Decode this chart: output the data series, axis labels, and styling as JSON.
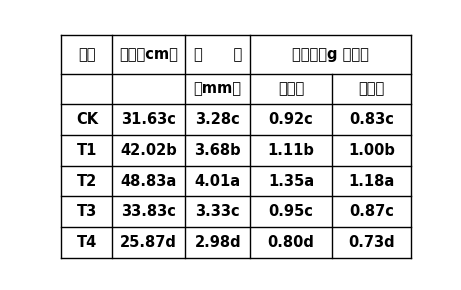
{
  "col_headers_row1": [
    "处理",
    "株高（cm）",
    "茎　　粗",
    "生物量（g 干重）"
  ],
  "col_headers_row2": [
    "",
    "",
    "（mm）",
    "地上部",
    "地下部"
  ],
  "rows": [
    [
      "CK",
      "31.63c",
      "3.28c",
      "0.92c",
      "0.83c"
    ],
    [
      "T1",
      "42.02b",
      "3.68b",
      "1.11b",
      "1.00b"
    ],
    [
      "T2",
      "48.83a",
      "4.01a",
      "1.35a",
      "1.18a"
    ],
    [
      "T3",
      "33.83c",
      "3.33c",
      "0.95c",
      "0.87c"
    ],
    [
      "T4",
      "25.87d",
      "2.98d",
      "0.80d",
      "0.73d"
    ]
  ],
  "background_color": "#ffffff",
  "text_color": "#000000",
  "font_size": 10.5,
  "line_width": 1.0
}
